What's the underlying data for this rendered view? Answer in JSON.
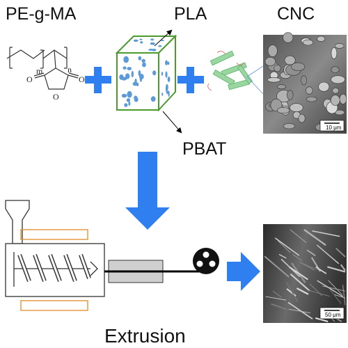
{
  "labels": {
    "pe_g_ma": "PE-g-MA",
    "pla": "PLA",
    "cnc": "CNC",
    "pbat": "PBAT",
    "extrusion": "Extrusion"
  },
  "structure": {
    "subscript_m": "m",
    "subscript_n": "n",
    "oxygen_atoms": [
      "O",
      "O",
      "O"
    ]
  },
  "micrographs": {
    "top_scale": "10 μm",
    "bottom_scale": "50 μm"
  }
}
